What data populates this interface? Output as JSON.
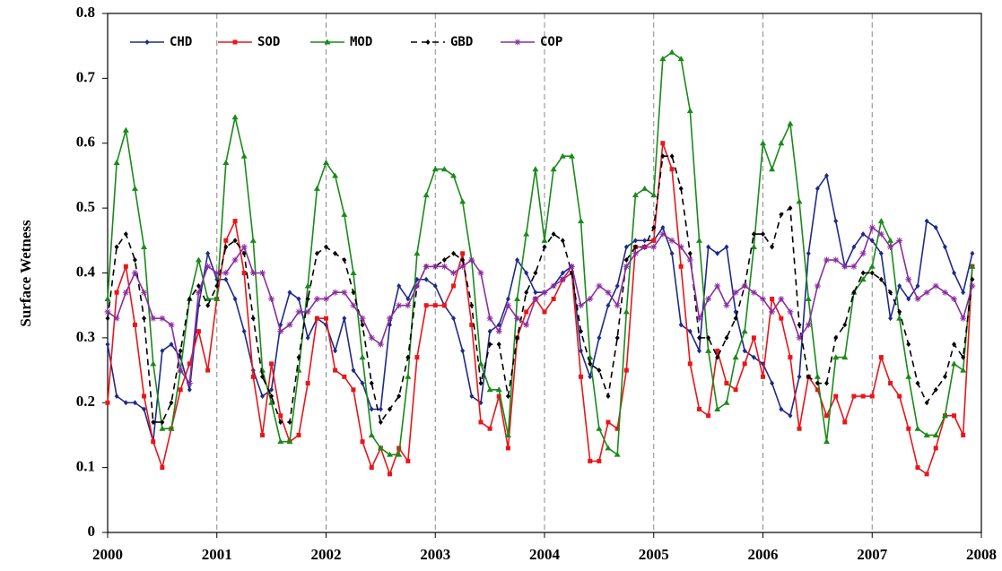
{
  "chart_data": {
    "type": "line",
    "ylabel": "Surface Wetness",
    "x": [
      2000,
      2000.083,
      2000.167,
      2000.25,
      2000.333,
      2000.417,
      2000.5,
      2000.583,
      2000.667,
      2000.75,
      2000.833,
      2000.917,
      2001,
      2001.083,
      2001.167,
      2001.25,
      2001.333,
      2001.417,
      2001.5,
      2001.583,
      2001.667,
      2001.75,
      2001.833,
      2001.917,
      2002,
      2002.083,
      2002.167,
      2002.25,
      2002.333,
      2002.417,
      2002.5,
      2002.583,
      2002.667,
      2002.75,
      2002.833,
      2002.917,
      2003,
      2003.083,
      2003.167,
      2003.25,
      2003.333,
      2003.417,
      2003.5,
      2003.583,
      2003.667,
      2003.75,
      2003.833,
      2003.917,
      2004,
      2004.083,
      2004.167,
      2004.25,
      2004.333,
      2004.417,
      2004.5,
      2004.583,
      2004.667,
      2004.75,
      2004.833,
      2004.917,
      2005,
      2005.083,
      2005.167,
      2005.25,
      2005.333,
      2005.417,
      2005.5,
      2005.583,
      2005.667,
      2005.75,
      2005.833,
      2005.917,
      2006,
      2006.083,
      2006.167,
      2006.25,
      2006.333,
      2006.417,
      2006.5,
      2006.583,
      2006.667,
      2006.75,
      2006.833,
      2006.917,
      2007,
      2007.083,
      2007.167,
      2007.25,
      2007.333,
      2007.417,
      2007.5,
      2007.583,
      2007.667,
      2007.75,
      2007.833,
      2007.917
    ],
    "series": [
      {
        "name": "CHD",
        "color": "#1f2a8a",
        "marker": "diamond",
        "linestyle": "solid",
        "values": [
          0.29,
          0.21,
          0.2,
          0.2,
          0.19,
          0.14,
          0.28,
          0.29,
          0.27,
          0.22,
          0.35,
          0.43,
          0.39,
          0.39,
          0.36,
          0.31,
          0.25,
          0.21,
          0.22,
          0.32,
          0.37,
          0.36,
          0.3,
          0.33,
          0.32,
          0.28,
          0.33,
          0.25,
          0.23,
          0.19,
          0.19,
          0.32,
          0.38,
          0.36,
          0.39,
          0.39,
          0.38,
          0.35,
          0.33,
          0.28,
          0.21,
          0.2,
          0.31,
          0.32,
          0.36,
          0.42,
          0.4,
          0.37,
          0.37,
          0.38,
          0.4,
          0.41,
          0.28,
          0.24,
          0.3,
          0.35,
          0.38,
          0.44,
          0.45,
          0.45,
          0.45,
          0.47,
          0.43,
          0.32,
          0.31,
          0.28,
          0.44,
          0.43,
          0.44,
          0.34,
          0.28,
          0.27,
          0.26,
          0.23,
          0.19,
          0.18,
          0.24,
          0.43,
          0.53,
          0.55,
          0.48,
          0.41,
          0.44,
          0.46,
          0.45,
          0.43,
          0.33,
          0.38,
          0.36,
          0.38,
          0.48,
          0.47,
          0.44,
          0.4,
          0.37,
          0.43
        ]
      },
      {
        "name": "SOD",
        "color": "#e8161b",
        "marker": "square",
        "linestyle": "solid",
        "values": [
          0.2,
          0.37,
          0.41,
          0.32,
          0.21,
          0.14,
          0.1,
          0.16,
          0.22,
          0.26,
          0.31,
          0.25,
          0.36,
          0.45,
          0.48,
          0.4,
          0.24,
          0.15,
          0.26,
          0.18,
          0.14,
          0.15,
          0.23,
          0.33,
          0.33,
          0.25,
          0.24,
          0.22,
          0.14,
          0.1,
          0.13,
          0.09,
          0.13,
          0.11,
          0.27,
          0.35,
          0.35,
          0.35,
          0.38,
          0.43,
          0.32,
          0.17,
          0.16,
          0.21,
          0.13,
          0.3,
          0.34,
          0.36,
          0.34,
          0.36,
          0.39,
          0.4,
          0.24,
          0.11,
          0.11,
          0.17,
          0.16,
          0.25,
          0.44,
          0.44,
          0.45,
          0.6,
          0.56,
          0.41,
          0.26,
          0.19,
          0.18,
          0.28,
          0.23,
          0.22,
          0.26,
          0.3,
          0.24,
          0.36,
          0.33,
          0.27,
          0.16,
          0.24,
          0.22,
          0.18,
          0.21,
          0.17,
          0.21,
          0.21,
          0.21,
          0.27,
          0.23,
          0.21,
          0.16,
          0.1,
          0.09,
          0.13,
          0.18,
          0.18,
          0.15,
          0.41
        ]
      },
      {
        "name": "MOD",
        "color": "#1a8a1a",
        "marker": "triangle",
        "linestyle": "solid",
        "values": [
          0.36,
          0.57,
          0.62,
          0.53,
          0.44,
          0.26,
          0.16,
          0.16,
          0.25,
          0.36,
          0.42,
          0.36,
          0.36,
          0.57,
          0.64,
          0.58,
          0.45,
          0.25,
          0.2,
          0.14,
          0.14,
          0.25,
          0.38,
          0.53,
          0.57,
          0.55,
          0.49,
          0.4,
          0.27,
          0.15,
          0.13,
          0.12,
          0.12,
          0.24,
          0.43,
          0.52,
          0.56,
          0.56,
          0.55,
          0.51,
          0.42,
          0.26,
          0.22,
          0.22,
          0.15,
          0.36,
          0.46,
          0.56,
          0.45,
          0.56,
          0.58,
          0.58,
          0.48,
          0.27,
          0.16,
          0.13,
          0.12,
          0.34,
          0.52,
          0.53,
          0.52,
          0.73,
          0.74,
          0.73,
          0.65,
          0.45,
          0.28,
          0.19,
          0.2,
          0.27,
          0.31,
          0.44,
          0.6,
          0.56,
          0.6,
          0.63,
          0.51,
          0.36,
          0.24,
          0.14,
          0.27,
          0.27,
          0.37,
          0.39,
          0.41,
          0.48,
          0.45,
          0.33,
          0.24,
          0.16,
          0.15,
          0.15,
          0.18,
          0.26,
          0.25,
          0.41
        ]
      },
      {
        "name": "GBD",
        "color": "#000000",
        "marker": "diamond",
        "linestyle": "dashed",
        "values": [
          0.33,
          0.44,
          0.46,
          0.42,
          0.33,
          0.17,
          0.17,
          0.2,
          0.28,
          0.36,
          0.38,
          0.35,
          0.38,
          0.44,
          0.45,
          0.43,
          0.33,
          0.24,
          0.21,
          0.17,
          0.17,
          0.27,
          0.36,
          0.43,
          0.44,
          0.43,
          0.42,
          0.37,
          0.32,
          0.23,
          0.17,
          0.19,
          0.21,
          0.27,
          0.38,
          0.41,
          0.41,
          0.42,
          0.43,
          0.42,
          0.35,
          0.23,
          0.29,
          0.29,
          0.21,
          0.3,
          0.37,
          0.4,
          0.44,
          0.46,
          0.45,
          0.4,
          0.31,
          0.26,
          0.25,
          0.21,
          0.3,
          0.42,
          0.44,
          0.44,
          0.47,
          0.58,
          0.58,
          0.53,
          0.43,
          0.3,
          0.3,
          0.27,
          0.3,
          0.33,
          0.38,
          0.46,
          0.46,
          0.44,
          0.49,
          0.5,
          0.32,
          0.24,
          0.23,
          0.23,
          0.3,
          0.32,
          0.37,
          0.4,
          0.4,
          0.39,
          0.37,
          0.34,
          0.29,
          0.23,
          0.2,
          0.22,
          0.24,
          0.29,
          0.27,
          0.39
        ]
      },
      {
        "name": "COP",
        "color": "#8a2d9e",
        "marker": "star",
        "linestyle": "solid",
        "values": [
          0.34,
          0.33,
          0.37,
          0.4,
          0.37,
          0.33,
          0.33,
          0.32,
          0.25,
          0.23,
          0.37,
          0.41,
          0.4,
          0.4,
          0.42,
          0.44,
          0.4,
          0.4,
          0.36,
          0.31,
          0.32,
          0.34,
          0.34,
          0.36,
          0.36,
          0.37,
          0.37,
          0.35,
          0.33,
          0.3,
          0.29,
          0.33,
          0.35,
          0.35,
          0.38,
          0.41,
          0.41,
          0.41,
          0.4,
          0.41,
          0.42,
          0.4,
          0.33,
          0.31,
          0.35,
          0.33,
          0.32,
          0.36,
          0.37,
          0.38,
          0.39,
          0.41,
          0.35,
          0.36,
          0.38,
          0.37,
          0.35,
          0.41,
          0.43,
          0.44,
          0.44,
          0.46,
          0.45,
          0.44,
          0.42,
          0.33,
          0.36,
          0.38,
          0.35,
          0.37,
          0.38,
          0.37,
          0.36,
          0.34,
          0.36,
          0.34,
          0.3,
          0.32,
          0.38,
          0.42,
          0.42,
          0.41,
          0.41,
          0.43,
          0.47,
          0.46,
          0.44,
          0.45,
          0.39,
          0.36,
          0.37,
          0.38,
          0.37,
          0.36,
          0.33,
          0.38
        ]
      }
    ],
    "xlim": [
      2000,
      2008
    ],
    "xticks": [
      2000,
      2001,
      2002,
      2003,
      2004,
      2005,
      2006,
      2007,
      2008
    ],
    "ylim": [
      0,
      0.8
    ],
    "yticks": [
      0,
      0.1,
      0.2,
      0.3,
      0.4,
      0.5,
      0.6,
      0.7,
      0.8
    ],
    "xgrid": true,
    "legend": "upper left"
  }
}
